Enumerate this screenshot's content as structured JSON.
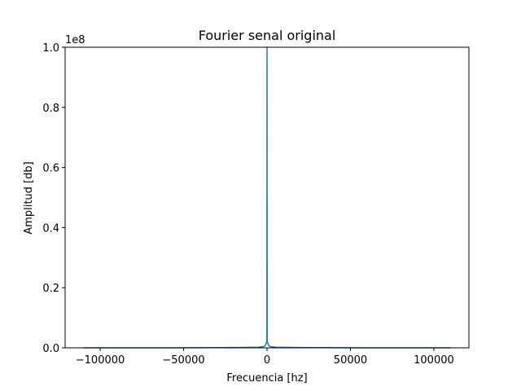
{
  "chart_data": {
    "type": "line",
    "title": "Fourier senal original",
    "xlabel": "Frecuencia [hz]",
    "ylabel": "Amplitud [db]",
    "y_offset_label": "1e8",
    "xlim": [
      -121000,
      121000
    ],
    "ylim": [
      0,
      1.0
    ],
    "x_ticks": [
      -100000,
      -50000,
      0,
      50000,
      100000
    ],
    "x_tick_labels": [
      "−100000",
      "−50000",
      "0",
      "50000",
      "100000"
    ],
    "y_ticks": [
      0.0,
      0.2,
      0.4,
      0.6,
      0.8,
      1.0
    ],
    "y_tick_labels": [
      "0.0",
      "0.2",
      "0.4",
      "0.6",
      "0.8",
      "1.0"
    ],
    "grid": false,
    "series": [
      {
        "color": "#1f77b4",
        "x": [
          -110250,
          -60000,
          -20000,
          -5000,
          -2000,
          -1000,
          -500,
          -200,
          -100,
          0,
          100,
          200,
          500,
          1000,
          2000,
          5000,
          20000,
          60000,
          110250
        ],
        "y": [
          0.0,
          0.0,
          0.001,
          0.002,
          0.004,
          0.008,
          0.015,
          0.02,
          0.02,
          1.0,
          0.02,
          0.02,
          0.015,
          0.008,
          0.004,
          0.002,
          0.001,
          0.0,
          0.0
        ]
      }
    ]
  }
}
